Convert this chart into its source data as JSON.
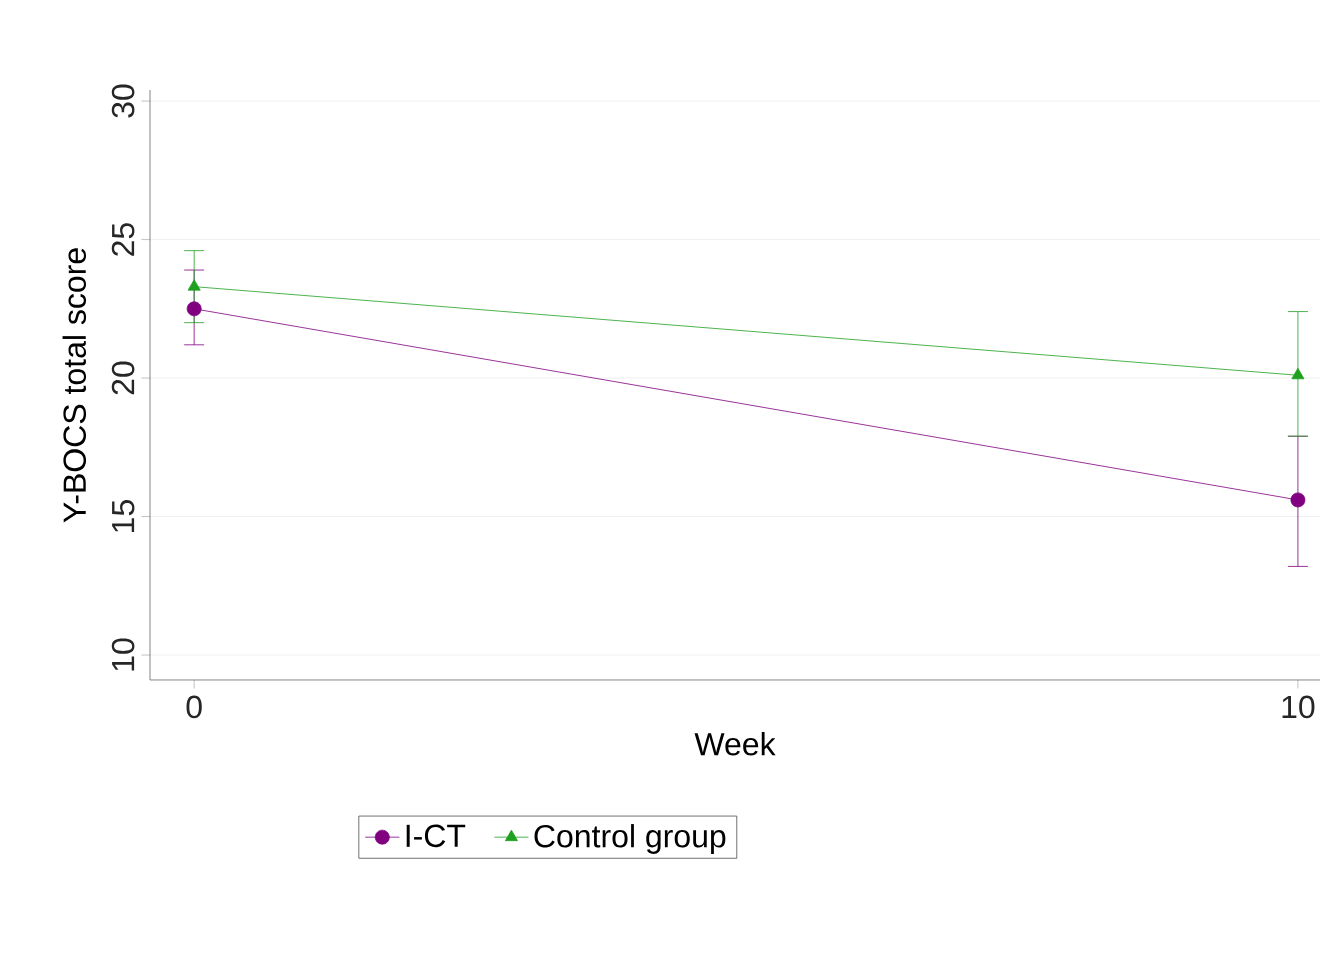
{
  "chart_data": {
    "type": "line",
    "xlabel": "Week",
    "ylabel": "Y-BOCS total score",
    "x": [
      0,
      10
    ],
    "series": [
      {
        "name": "I-CT",
        "color": "#800080",
        "values": [
          22.5,
          15.6
        ],
        "errors": [
          [
            21.2,
            23.9
          ],
          [
            13.2,
            17.9
          ]
        ],
        "marker": "circle"
      },
      {
        "name": "Control group",
        "color": "#1fa01f",
        "values": [
          23.3,
          20.1
        ],
        "errors": [
          [
            22.0,
            24.6
          ],
          [
            17.9,
            22.4
          ]
        ],
        "marker": "triangle"
      }
    ],
    "xlim": [
      -0.4,
      10.2
    ],
    "ylim": [
      9.1,
      30.4
    ],
    "xticks": [
      0,
      10
    ],
    "yticks": [
      10,
      15,
      20,
      25,
      30
    ],
    "grid": "y",
    "legend": "bottom",
    "line_style": "solid"
  }
}
